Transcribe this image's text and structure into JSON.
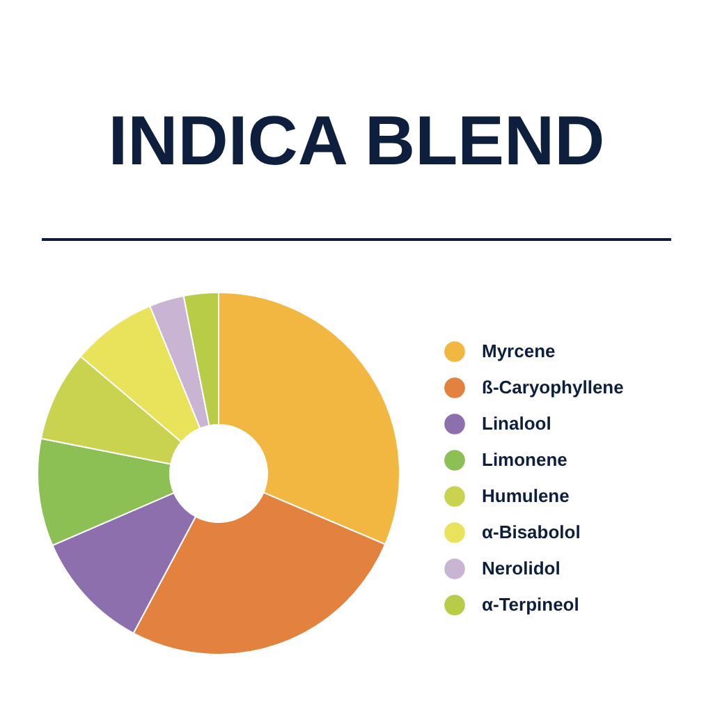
{
  "chart_data": {
    "type": "donut",
    "title": "INDICA BLEND",
    "categories": [
      "Myrcene",
      "ß-Caryophyllene",
      "Linalool",
      "Limonene",
      "Humulene",
      "α-Bisabolol",
      "Nerolidol",
      "α-Terpineol"
    ],
    "values": [
      31.4,
      26.4,
      10.7,
      9.6,
      8.1,
      7.6,
      3.1,
      3.1
    ],
    "colors": [
      "#f2b740",
      "#e3813e",
      "#8e6fae",
      "#8cbf54",
      "#c9d34f",
      "#e8e35a",
      "#c9b4d3",
      "#b8cc48"
    ],
    "legend": "right"
  }
}
